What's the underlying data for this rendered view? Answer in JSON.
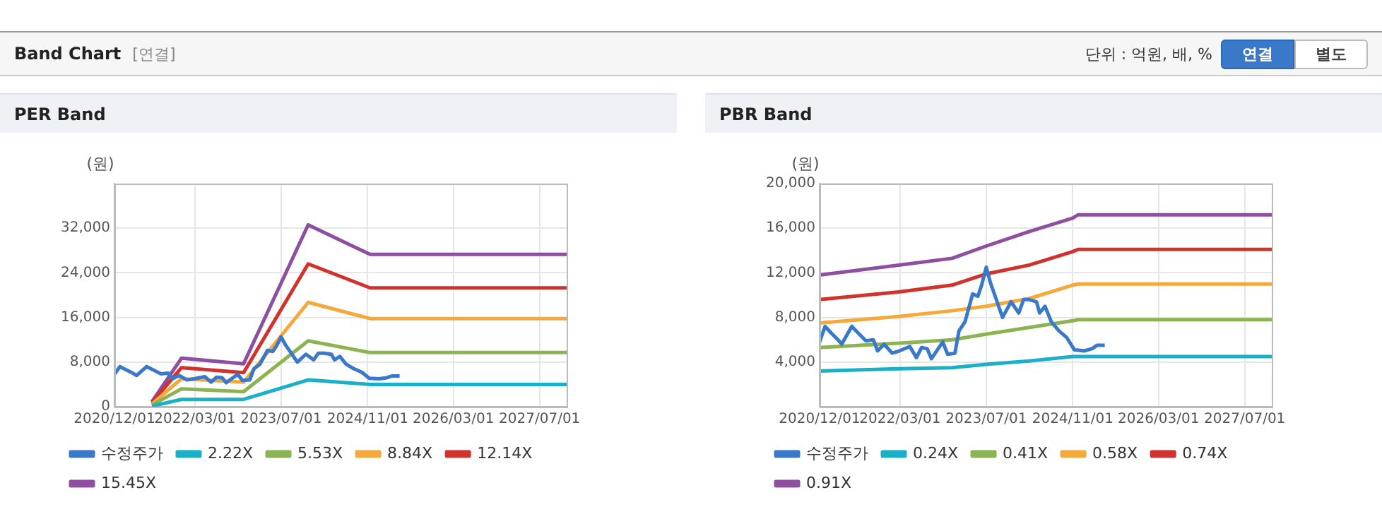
{
  "chart_data": [
    {
      "type": "other",
      "title": "Band Chart",
      "annotations": [
        "[연결]",
        "단위 : 억원, 배, %",
        "연결",
        "별도"
      ]
    },
    {
      "type": "line",
      "title": "PER Band",
      "ylabel": "(원)",
      "xlim": [
        "2020-12-01",
        "2027-12-01"
      ],
      "xticks": [
        {
          "value": "2020-12-01",
          "label": "2020/12/01"
        },
        {
          "value": "2022-03-01",
          "label": "2022/03/01"
        },
        {
          "value": "2023-07-01",
          "label": "2023/07/01"
        },
        {
          "value": "2024-11-01",
          "label": "2024/11/01"
        },
        {
          "value": "2026-03-01",
          "label": "2026/03/01"
        },
        {
          "value": "2027-07-01",
          "label": "2027/07/01"
        }
      ],
      "ylim": [
        0,
        40000
      ],
      "yticks": [
        {
          "value": 0,
          "label": "0"
        },
        {
          "value": 8000,
          "label": "8,000"
        },
        {
          "value": 16000,
          "label": "16,000"
        },
        {
          "value": 24000,
          "label": "24,000"
        },
        {
          "value": 32000,
          "label": "32,000"
        }
      ],
      "grid": true,
      "legend": "bottom",
      "marker": "none",
      "line_style": "solid",
      "series": [
        {
          "name": "수정주가",
          "color": "#3a78c9",
          "x": [
            "2020-12-01",
            "2021-01-01",
            "2021-02-05",
            "2021-03-15",
            "2021-04-05",
            "2021-06-01",
            "2021-07-01",
            "2021-08-20",
            "2021-10-01",
            "2021-10-25",
            "2021-12-01",
            "2022-01-15",
            "2022-02-25",
            "2022-04-25",
            "2022-06-01",
            "2022-07-01",
            "2022-08-01",
            "2022-08-25",
            "2022-10-28",
            "2022-11-25",
            "2023-01-05",
            "2023-01-28",
            "2023-03-03",
            "2023-04-15",
            "2023-05-15",
            "2023-06-05",
            "2023-07-01",
            "2023-07-25",
            "2023-08-25",
            "2023-10-01",
            "2023-11-18",
            "2024-01-01",
            "2024-01-28",
            "2024-02-28",
            "2024-04-10",
            "2024-04-28",
            "2024-05-28",
            "2024-07-03",
            "2024-08-15",
            "2024-09-28",
            "2024-11-10",
            "2025-01-05",
            "2025-02-18",
            "2025-03-18",
            "2025-05-01"
          ],
          "values": [
            5800,
            7200,
            6600,
            6000,
            5600,
            7200,
            6700,
            5900,
            6000,
            5000,
            5600,
            4800,
            5000,
            5400,
            4400,
            5300,
            5200,
            4300,
            5800,
            4700,
            4800,
            6800,
            7600,
            10100,
            9900,
            10900,
            12500,
            11100,
            9700,
            8000,
            9400,
            8400,
            9600,
            9600,
            9400,
            8400,
            9000,
            7600,
            6800,
            6200,
            5100,
            5000,
            5200,
            5500,
            5500
          ]
        },
        {
          "name": "2.22X",
          "color": "#1ab0c8",
          "x": [
            "2021-07-01",
            "2021-12-15",
            "2022-12-01",
            "2023-12-01",
            "2024-11-15",
            "2027-12-01"
          ],
          "values": [
            100,
            1300,
            1300,
            4800,
            4000,
            4000
          ]
        },
        {
          "name": "5.53X",
          "color": "#8cb351",
          "x": [
            "2021-07-01",
            "2021-12-15",
            "2022-12-01",
            "2023-12-01",
            "2024-11-15",
            "2027-12-01"
          ],
          "values": [
            300,
            3200,
            2700,
            11800,
            9700,
            9700
          ]
        },
        {
          "name": "8.84X",
          "color": "#f5a93a",
          "x": [
            "2021-07-01",
            "2021-12-15",
            "2022-12-01",
            "2023-12-01",
            "2024-11-15",
            "2027-12-01"
          ],
          "values": [
            500,
            5000,
            4400,
            18700,
            15800,
            15800
          ]
        },
        {
          "name": "12.14X",
          "color": "#d0332c",
          "x": [
            "2021-07-01",
            "2021-12-15",
            "2022-12-01",
            "2023-12-01",
            "2024-11-15",
            "2027-12-01"
          ],
          "values": [
            700,
            7000,
            6100,
            25600,
            21300,
            21300
          ]
        },
        {
          "name": "15.45X",
          "color": "#8e4fa0",
          "x": [
            "2021-07-01",
            "2021-12-15",
            "2022-12-01",
            "2023-12-01",
            "2024-11-15",
            "2027-12-01"
          ],
          "values": [
            900,
            8700,
            7700,
            32600,
            27300,
            27300
          ]
        }
      ]
    },
    {
      "type": "line",
      "title": "PBR Band",
      "ylabel": "(원)",
      "xlim": [
        "2020-12-01",
        "2027-12-01"
      ],
      "xticks": [
        {
          "value": "2020-12-01",
          "label": "2020/12/01"
        },
        {
          "value": "2022-03-01",
          "label": "2022/03/01"
        },
        {
          "value": "2023-07-01",
          "label": "2023/07/01"
        },
        {
          "value": "2024-11-01",
          "label": "2024/11/01"
        },
        {
          "value": "2026-03-01",
          "label": "2026/03/01"
        },
        {
          "value": "2027-07-01",
          "label": "2027/07/01"
        }
      ],
      "ylim": [
        0,
        20000
      ],
      "yticks": [
        {
          "value": 4000,
          "label": "4,000"
        },
        {
          "value": 8000,
          "label": "8,000"
        },
        {
          "value": 12000,
          "label": "12,000"
        },
        {
          "value": 16000,
          "label": "16,000"
        },
        {
          "value": 20000,
          "label": "20,000"
        }
      ],
      "grid": true,
      "legend": "bottom",
      "marker": "none",
      "line_style": "solid",
      "series": [
        {
          "name": "수정주가",
          "color": "#3a78c9",
          "x": [
            "2020-12-01",
            "2021-01-01",
            "2021-02-05",
            "2021-03-15",
            "2021-04-05",
            "2021-06-01",
            "2021-07-01",
            "2021-08-20",
            "2021-10-01",
            "2021-10-25",
            "2021-12-01",
            "2022-01-15",
            "2022-02-25",
            "2022-04-25",
            "2022-06-01",
            "2022-07-01",
            "2022-08-01",
            "2022-08-25",
            "2022-10-28",
            "2022-11-25",
            "2023-01-05",
            "2023-01-28",
            "2023-03-03",
            "2023-04-15",
            "2023-05-15",
            "2023-06-05",
            "2023-07-01",
            "2023-07-25",
            "2023-08-25",
            "2023-10-01",
            "2023-11-18",
            "2024-01-01",
            "2024-01-28",
            "2024-02-28",
            "2024-04-10",
            "2024-04-28",
            "2024-05-28",
            "2024-07-03",
            "2024-08-15",
            "2024-09-28",
            "2024-11-10",
            "2025-01-05",
            "2025-02-18",
            "2025-03-18",
            "2025-05-01"
          ],
          "values": [
            5800,
            7200,
            6600,
            6000,
            5600,
            7200,
            6700,
            5900,
            6000,
            5000,
            5600,
            4800,
            5000,
            5400,
            4400,
            5300,
            5200,
            4300,
            5800,
            4700,
            4800,
            6800,
            7600,
            10100,
            9900,
            10900,
            12500,
            11100,
            9700,
            8000,
            9400,
            8400,
            9600,
            9600,
            9400,
            8400,
            9000,
            7600,
            6800,
            6200,
            5100,
            5000,
            5200,
            5500,
            5500
          ]
        },
        {
          "name": "0.24X",
          "color": "#1ab0c8",
          "x": [
            "2020-12-01",
            "2022-03-01",
            "2022-12-20",
            "2023-07-01",
            "2024-03-01",
            "2024-11-01",
            "2024-12-01",
            "2027-12-01"
          ],
          "values": [
            3200,
            3400,
            3500,
            3800,
            4100,
            4500,
            4500,
            4500
          ]
        },
        {
          "name": "0.41X",
          "color": "#8cb351",
          "x": [
            "2020-12-01",
            "2022-03-01",
            "2022-12-20",
            "2023-07-01",
            "2024-03-01",
            "2024-11-01",
            "2024-12-01",
            "2027-12-01"
          ],
          "values": [
            5300,
            5700,
            6000,
            6500,
            7100,
            7700,
            7800,
            7800
          ]
        },
        {
          "name": "0.58X",
          "color": "#f5a93a",
          "x": [
            "2020-12-01",
            "2022-03-01",
            "2022-12-20",
            "2023-07-01",
            "2024-03-01",
            "2024-11-01",
            "2024-12-01",
            "2027-12-01"
          ],
          "values": [
            7500,
            8100,
            8600,
            9000,
            9700,
            10900,
            11000,
            11000
          ]
        },
        {
          "name": "0.74X",
          "color": "#d0332c",
          "x": [
            "2020-12-01",
            "2022-03-01",
            "2022-12-20",
            "2023-07-01",
            "2024-03-01",
            "2024-11-01",
            "2024-12-01",
            "2027-12-01"
          ],
          "values": [
            9600,
            10300,
            10900,
            11900,
            12700,
            13900,
            14100,
            14100
          ]
        },
        {
          "name": "0.91X",
          "color": "#8e4fa0",
          "x": [
            "2020-12-01",
            "2022-03-01",
            "2022-12-20",
            "2023-07-01",
            "2024-03-01",
            "2024-11-01",
            "2024-12-01",
            "2027-12-01"
          ],
          "values": [
            11800,
            12700,
            13300,
            14400,
            15700,
            16900,
            17200,
            17200
          ]
        }
      ]
    }
  ]
}
